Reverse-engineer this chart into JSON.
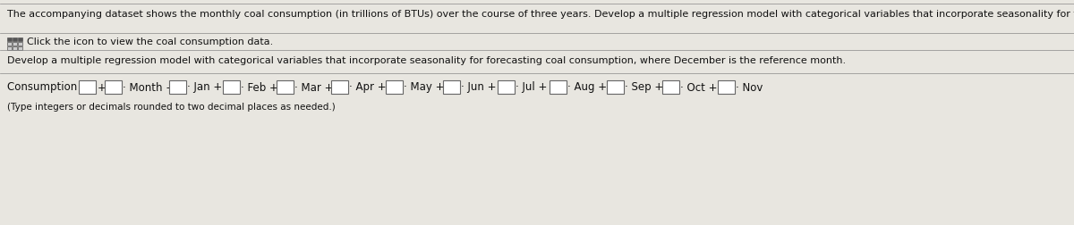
{
  "bg_color": "#e8e6e0",
  "line1": "The accompanying dataset shows the monthly coal consumption (in trillions of BTUs) over the course of three years. Develop a multiple regression model with categorical variables that incorporate seasonality for forecasting coal consumption",
  "line2": "Click the icon to view the coal consumption data.",
  "line3": "Develop a multiple regression model with categorical variables that incorporate seasonality for forecasting coal consumption, where December is the reference month.",
  "consumption_label": "Consumption =",
  "footnote": "(Type integers or decimals rounded to two decimal places as needed.)",
  "text_color": "#111111",
  "box_color": "#ffffff",
  "box_border": "#666666",
  "separator_color": "#888888",
  "font_size_text": 8.0,
  "font_size_eq": 8.5,
  "font_size_small": 7.5
}
